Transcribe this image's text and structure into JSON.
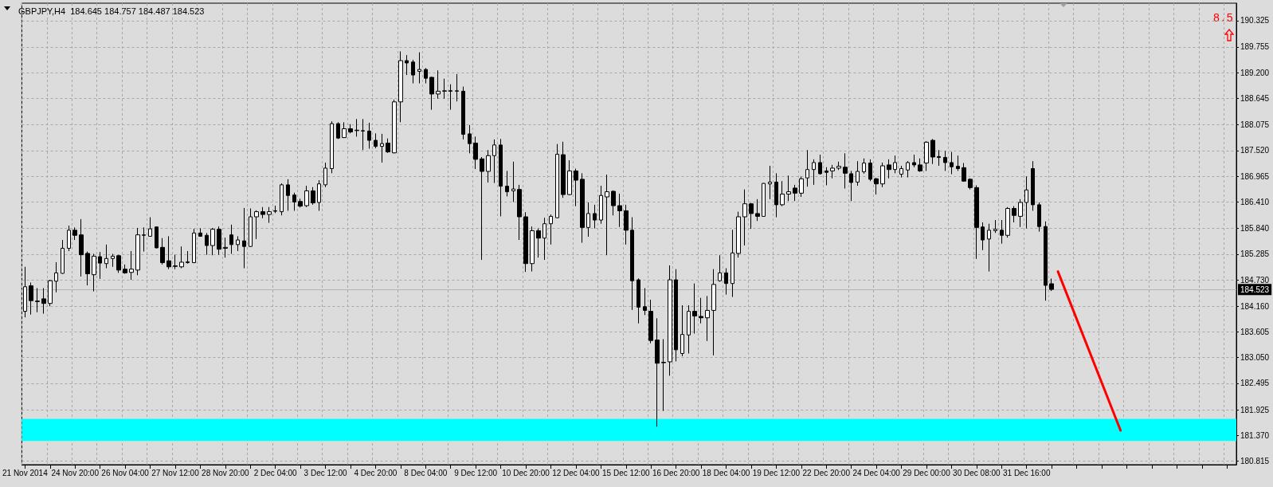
{
  "chart_data": {
    "type": "candlestick",
    "title": "GBPJPY,H4  184.645 184.757 184.487 184.523",
    "annotations": [
      "8.5"
    ],
    "categories": [
      "21 Nov 2014",
      null,
      null,
      null,
      null,
      null,
      null,
      null,
      "24 Nov 20:00",
      null,
      null,
      null,
      null,
      null,
      null,
      null,
      "26 Nov 04:00",
      null,
      null,
      null,
      null,
      null,
      null,
      null,
      "27 Nov 12:00",
      null,
      null,
      null,
      null,
      null,
      null,
      null,
      "28 Nov 20:00",
      null,
      null,
      null,
      null,
      null,
      null,
      null,
      "2 Dec 04:00",
      null,
      null,
      null,
      null,
      null,
      null,
      null,
      "3 Dec 12:00",
      null,
      null,
      null,
      null,
      null,
      null,
      null,
      "4 Dec 20:00",
      null,
      null,
      null,
      null,
      null,
      null,
      null,
      "8 Dec 04:00",
      null,
      null,
      null,
      null,
      null,
      null,
      null,
      "9 Dec 12:00",
      null,
      null,
      null,
      null,
      null,
      null,
      null,
      "10 Dec 20:00",
      null,
      null,
      null,
      null,
      null,
      null,
      null,
      "12 Dec 04:00",
      null,
      null,
      null,
      null,
      null,
      null,
      null,
      "15 Dec 12:00",
      null,
      null,
      null,
      null,
      null,
      null,
      null,
      "16 Dec 20:00",
      null,
      null,
      null,
      null,
      null,
      null,
      null,
      "18 Dec 04:00",
      null,
      null,
      null,
      null,
      null,
      null,
      null,
      "19 Dec 12:00",
      null,
      null,
      null,
      null,
      null,
      null,
      null,
      "22 Dec 20:00",
      null,
      null,
      null,
      null,
      null,
      null,
      null,
      "24 Dec 04:00",
      null,
      null,
      null,
      null,
      null,
      null,
      null,
      "29 Dec 00:00",
      null,
      null,
      null,
      null,
      null,
      null,
      null,
      "30 Dec 08:00",
      null,
      null,
      null,
      null,
      null,
      null,
      null,
      "31 Dec 16:00",
      null,
      null,
      null,
      null,
      null,
      null,
      null,
      null,
      null,
      null,
      null,
      null,
      null,
      null,
      null,
      null,
      null,
      null,
      null,
      null,
      null,
      null,
      null,
      null,
      null,
      null,
      null,
      null,
      null,
      null,
      null,
      null,
      null
    ],
    "ohlc": [
      [
        184.05,
        185.01,
        183.92,
        184.58
      ],
      [
        184.6,
        184.67,
        183.98,
        184.28
      ],
      [
        184.27,
        184.55,
        184.03,
        184.26
      ],
      [
        184.32,
        184.55,
        184.0,
        184.22
      ],
      [
        184.22,
        184.73,
        184.16,
        184.71
      ],
      [
        184.7,
        185.11,
        184.46,
        184.88
      ],
      [
        184.87,
        185.59,
        184.86,
        185.41
      ],
      [
        185.41,
        185.9,
        185.35,
        185.8
      ],
      [
        185.8,
        185.86,
        185.59,
        185.69
      ],
      [
        185.7,
        186.04,
        184.8,
        185.27
      ],
      [
        185.3,
        185.34,
        184.61,
        184.86
      ],
      [
        184.84,
        185.29,
        184.48,
        185.24
      ],
      [
        185.23,
        185.33,
        184.75,
        185.09
      ],
      [
        185.08,
        185.49,
        184.98,
        185.19
      ],
      [
        185.19,
        185.29,
        185.01,
        185.24
      ],
      [
        185.25,
        185.27,
        184.88,
        184.94
      ],
      [
        184.96,
        185.06,
        184.86,
        184.88
      ],
      [
        184.89,
        185.35,
        184.73,
        184.96
      ],
      [
        184.94,
        185.85,
        184.83,
        185.7
      ],
      [
        185.69,
        185.86,
        185.34,
        185.7
      ],
      [
        185.67,
        186.08,
        185.66,
        185.83
      ],
      [
        185.87,
        185.88,
        185.41,
        185.42
      ],
      [
        185.43,
        185.63,
        185.06,
        185.1
      ],
      [
        185.14,
        185.67,
        184.96,
        185.01
      ],
      [
        185.03,
        185.27,
        184.96,
        185.02
      ],
      [
        185.01,
        185.45,
        184.98,
        185.11
      ],
      [
        185.1,
        185.35,
        185.08,
        185.12
      ],
      [
        185.1,
        185.83,
        185.09,
        185.74
      ],
      [
        185.74,
        185.84,
        185.66,
        185.67
      ],
      [
        185.69,
        185.74,
        185.27,
        185.47
      ],
      [
        185.47,
        185.85,
        185.26,
        185.82
      ],
      [
        185.82,
        185.88,
        185.27,
        185.39
      ],
      [
        185.41,
        185.64,
        185.21,
        185.43
      ],
      [
        185.7,
        185.92,
        185.29,
        185.49
      ],
      [
        185.49,
        185.67,
        185.35,
        185.59
      ],
      [
        185.57,
        186.28,
        184.98,
        185.45
      ],
      [
        185.45,
        186.27,
        185.44,
        186.09
      ],
      [
        186.09,
        186.23,
        185.61,
        186.2
      ],
      [
        186.2,
        186.3,
        186.06,
        186.14
      ],
      [
        186.14,
        186.3,
        185.96,
        186.2
      ],
      [
        186.21,
        186.33,
        186.17,
        186.22
      ],
      [
        186.2,
        186.81,
        186.12,
        186.78
      ],
      [
        186.78,
        186.9,
        186.22,
        186.55
      ],
      [
        186.56,
        186.61,
        186.22,
        186.41
      ],
      [
        186.42,
        186.48,
        186.29,
        186.32
      ],
      [
        186.33,
        186.76,
        186.3,
        186.65
      ],
      [
        186.65,
        186.73,
        186.35,
        186.39
      ],
      [
        186.4,
        186.88,
        186.22,
        186.8
      ],
      [
        186.78,
        187.26,
        186.73,
        187.14
      ],
      [
        187.13,
        188.15,
        187.03,
        188.1
      ],
      [
        188.1,
        188.13,
        187.77,
        187.79
      ],
      [
        187.8,
        188.13,
        187.79,
        187.99
      ],
      [
        187.99,
        188.09,
        187.89,
        187.92
      ],
      [
        187.95,
        188.2,
        187.82,
        187.96
      ],
      [
        187.94,
        188.2,
        187.53,
        187.95
      ],
      [
        187.94,
        188.12,
        187.56,
        187.74
      ],
      [
        187.74,
        187.89,
        187.57,
        187.61
      ],
      [
        187.61,
        187.88,
        187.26,
        187.67
      ],
      [
        187.68,
        187.78,
        187.47,
        187.49
      ],
      [
        187.47,
        188.62,
        187.46,
        188.57
      ],
      [
        188.57,
        189.66,
        188.13,
        189.46
      ],
      [
        189.46,
        189.58,
        189.15,
        189.41
      ],
      [
        189.43,
        189.48,
        188.97,
        189.15
      ],
      [
        189.23,
        189.64,
        188.97,
        189.27
      ],
      [
        189.27,
        189.3,
        188.97,
        189.08
      ],
      [
        189.1,
        189.11,
        188.4,
        188.74
      ],
      [
        188.74,
        189.25,
        188.64,
        188.8
      ],
      [
        188.8,
        189.07,
        188.64,
        188.81
      ],
      [
        188.81,
        188.95,
        188.4,
        188.8
      ],
      [
        188.8,
        189.17,
        188.58,
        188.81
      ],
      [
        188.8,
        188.9,
        187.76,
        187.87
      ],
      [
        187.88,
        188.07,
        187.46,
        187.67
      ],
      [
        187.68,
        187.82,
        187.12,
        187.33
      ],
      [
        187.34,
        187.38,
        185.16,
        187.07
      ],
      [
        187.07,
        187.53,
        186.83,
        187.41
      ],
      [
        187.41,
        187.76,
        186.82,
        187.64
      ],
      [
        187.64,
        187.77,
        186.1,
        186.75
      ],
      [
        186.75,
        187.08,
        186.53,
        186.63
      ],
      [
        186.65,
        187.28,
        186.41,
        186.69
      ],
      [
        186.68,
        186.78,
        185.59,
        186.09
      ],
      [
        186.09,
        186.19,
        184.9,
        185.08
      ],
      [
        185.08,
        185.88,
        184.91,
        185.79
      ],
      [
        185.79,
        185.84,
        185.21,
        185.63
      ],
      [
        185.63,
        186.07,
        185.16,
        185.94
      ],
      [
        185.94,
        186.14,
        185.49,
        186.1
      ],
      [
        186.07,
        187.66,
        186.06,
        187.44
      ],
      [
        187.43,
        187.71,
        186.5,
        186.57
      ],
      [
        186.57,
        187.31,
        186.56,
        187.08
      ],
      [
        187.08,
        187.13,
        186.32,
        186.88
      ],
      [
        186.9,
        187.03,
        185.53,
        185.86
      ],
      [
        185.86,
        186.4,
        185.66,
        186.16
      ],
      [
        186.16,
        186.35,
        185.84,
        186.02
      ],
      [
        186.02,
        186.76,
        185.94,
        186.55
      ],
      [
        186.52,
        187.0,
        185.26,
        186.63
      ],
      [
        186.64,
        186.66,
        186.12,
        186.33
      ],
      [
        186.33,
        186.59,
        185.87,
        186.22
      ],
      [
        186.22,
        186.35,
        185.49,
        185.8
      ],
      [
        185.8,
        186.08,
        184.08,
        184.71
      ],
      [
        184.73,
        184.76,
        183.79,
        184.14
      ],
      [
        184.15,
        184.55,
        183.97,
        184.07
      ],
      [
        184.05,
        184.3,
        183.36,
        183.42
      ],
      [
        183.43,
        183.9,
        181.56,
        182.93
      ],
      [
        182.95,
        183.45,
        181.9,
        182.94
      ],
      [
        182.96,
        185.04,
        182.66,
        184.73
      ],
      [
        184.73,
        184.96,
        182.97,
        183.22
      ],
      [
        183.14,
        184.18,
        183.08,
        183.55
      ],
      [
        183.54,
        184.18,
        183.14,
        184.05
      ],
      [
        184.05,
        184.65,
        183.57,
        183.95
      ],
      [
        183.94,
        184.34,
        183.79,
        183.91
      ],
      [
        183.91,
        184.38,
        183.41,
        184.07
      ],
      [
        184.07,
        184.96,
        183.1,
        184.63
      ],
      [
        184.71,
        185.26,
        184.69,
        184.88
      ],
      [
        184.88,
        184.98,
        184.41,
        184.65
      ],
      [
        184.65,
        185.81,
        184.36,
        185.31
      ],
      [
        185.3,
        186.2,
        185.21,
        186.09
      ],
      [
        186.09,
        186.68,
        185.47,
        186.37
      ],
      [
        186.37,
        186.39,
        185.83,
        186.16
      ],
      [
        186.16,
        186.47,
        186.0,
        186.1
      ],
      [
        186.1,
        186.82,
        186.09,
        186.81
      ],
      [
        186.8,
        187.19,
        186.47,
        186.84
      ],
      [
        186.84,
        187.03,
        186.08,
        186.35
      ],
      [
        186.35,
        186.86,
        186.32,
        186.58
      ],
      [
        186.58,
        186.98,
        186.43,
        186.63
      ],
      [
        186.71,
        186.78,
        186.43,
        186.6
      ],
      [
        186.6,
        186.96,
        186.52,
        186.91
      ],
      [
        186.93,
        187.53,
        186.74,
        187.11
      ],
      [
        187.11,
        187.33,
        186.78,
        187.26
      ],
      [
        187.26,
        187.43,
        187.0,
        187.02
      ],
      [
        187.08,
        187.16,
        186.77,
        187.05
      ],
      [
        187.08,
        187.21,
        186.92,
        187.14
      ],
      [
        187.14,
        187.28,
        187.1,
        187.18
      ],
      [
        187.16,
        187.46,
        186.7,
        187.03
      ],
      [
        187.02,
        187.08,
        186.43,
        186.83
      ],
      [
        186.84,
        187.29,
        186.76,
        187.07
      ],
      [
        187.06,
        187.35,
        187.02,
        187.25
      ],
      [
        187.25,
        187.33,
        186.86,
        186.9
      ],
      [
        186.91,
        186.93,
        186.57,
        186.8
      ],
      [
        186.8,
        187.26,
        186.73,
        187.19
      ],
      [
        187.21,
        187.33,
        186.92,
        187.11
      ],
      [
        187.11,
        187.41,
        187.03,
        187.26
      ],
      [
        187.01,
        187.19,
        186.94,
        187.13
      ],
      [
        187.1,
        187.29,
        186.94,
        187.26
      ],
      [
        187.26,
        187.43,
        187.16,
        187.21
      ],
      [
        187.21,
        187.35,
        187.06,
        187.08
      ],
      [
        187.25,
        187.72,
        187.08,
        187.7
      ],
      [
        187.74,
        187.77,
        187.23,
        187.38
      ],
      [
        187.39,
        187.53,
        187.19,
        187.37
      ],
      [
        187.37,
        187.51,
        187.08,
        187.26
      ],
      [
        187.26,
        187.49,
        187.01,
        187.17
      ],
      [
        187.18,
        187.41,
        187.08,
        187.13
      ],
      [
        187.15,
        187.25,
        186.85,
        186.86
      ],
      [
        186.9,
        186.92,
        186.68,
        186.72
      ],
      [
        186.72,
        186.77,
        185.18,
        185.86
      ],
      [
        185.87,
        185.97,
        185.37,
        185.59
      ],
      [
        185.61,
        185.94,
        184.91,
        185.8
      ],
      [
        185.79,
        186.02,
        185.74,
        185.82
      ],
      [
        185.8,
        186.02,
        185.51,
        185.69
      ],
      [
        185.69,
        186.3,
        185.64,
        186.27
      ],
      [
        186.27,
        186.32,
        185.97,
        186.12
      ],
      [
        186.1,
        186.47,
        185.87,
        186.4
      ],
      [
        186.4,
        186.96,
        185.84,
        186.67
      ],
      [
        187.13,
        187.29,
        186.22,
        186.35
      ],
      [
        186.35,
        186.4,
        185.77,
        185.88
      ],
      [
        185.88,
        185.99,
        184.28,
        184.61
      ],
      [
        184.645,
        184.757,
        184.487,
        184.523
      ],
      null,
      null,
      null,
      null,
      null,
      null,
      null,
      null,
      null,
      null,
      null,
      null,
      null,
      null,
      null,
      null,
      null,
      null,
      null,
      null,
      null,
      null,
      null,
      null,
      null,
      null,
      null,
      null,
      null
    ],
    "series": [
      {
        "type": "line",
        "color": "#ff0000",
        "values": [
          null,
          null,
          null,
          null,
          null,
          null,
          null,
          null,
          null,
          null,
          null,
          null,
          null,
          null,
          null,
          null,
          null,
          null,
          null,
          null,
          null,
          null,
          null,
          null,
          null,
          null,
          null,
          null,
          null,
          null,
          null,
          null,
          null,
          null,
          null,
          null,
          null,
          null,
          null,
          null,
          null,
          null,
          null,
          null,
          null,
          null,
          null,
          null,
          null,
          null,
          null,
          null,
          null,
          null,
          null,
          null,
          null,
          null,
          null,
          null,
          null,
          null,
          null,
          null,
          null,
          null,
          null,
          null,
          null,
          null,
          null,
          null,
          null,
          null,
          null,
          null,
          null,
          null,
          null,
          null,
          null,
          null,
          null,
          null,
          null,
          null,
          null,
          null,
          null,
          null,
          null,
          null,
          null,
          null,
          null,
          null,
          null,
          null,
          null,
          null,
          null,
          null,
          null,
          null,
          null,
          null,
          null,
          null,
          null,
          null,
          null,
          null,
          null,
          null,
          null,
          null,
          null,
          null,
          null,
          null,
          null,
          null,
          null,
          null,
          null,
          null,
          null,
          null,
          null,
          null,
          null,
          null,
          null,
          null,
          null,
          null,
          null,
          null,
          null,
          null,
          null,
          null,
          null,
          null,
          null,
          null,
          null,
          null,
          null,
          null,
          null,
          null,
          null,
          null,
          null,
          null,
          null,
          null,
          null,
          null,
          null,
          null,
          null,
          null,
          null,
          184.91,
          null,
          null,
          null,
          null,
          null,
          null,
          null,
          null,
          null,
          181.48,
          null,
          null,
          null,
          null,
          null,
          null,
          null,
          null,
          null,
          null,
          null,
          null,
          null,
          null,
          null,
          null,
          null,
          null
        ]
      }
    ],
    "marker": "none",
    "ylim": [
      180.74,
      190.7
    ],
    "yticks": [
      180.815,
      {
        "value": 181.37,
        "label": "181.370"
      },
      181.925,
      182.495,
      {
        "value": 183.05,
        "label": "183.050"
      },
      183.605,
      {
        "value": 184.16,
        "label": "184.160"
      },
      {
        "value": 184.73,
        "label": "184.730"
      },
      185.285,
      {
        "value": 185.84,
        "label": "185.840"
      },
      {
        "value": 186.41,
        "label": "186.410"
      },
      186.965,
      {
        "value": 187.52,
        "label": "187.520"
      },
      188.075,
      188.645,
      {
        "value": 189.2,
        "label": "189.200"
      },
      189.755,
      190.325
    ],
    "grid": true,
    "ref_lines": [
      {
        "axis": "y",
        "value": 184.523,
        "label": "184.523",
        "color": "#b4b4b4"
      }
    ],
    "bands": [
      {
        "axis": "y",
        "from": 181.25,
        "to": 181.73,
        "color": "#00ffff"
      }
    ]
  }
}
